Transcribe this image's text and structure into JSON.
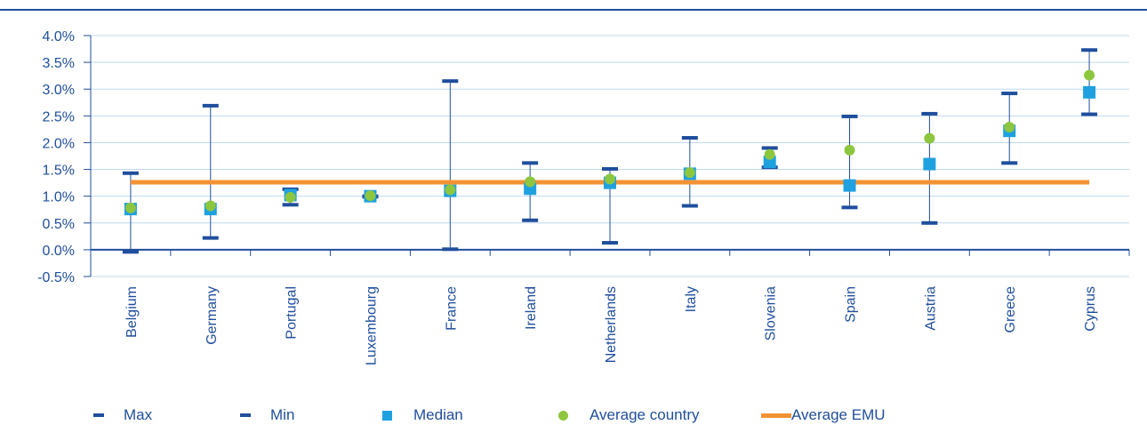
{
  "chart_data": {
    "type": "scatter",
    "title": "",
    "xlabel": "",
    "ylabel": "",
    "ylim": [
      -0.5,
      4.0
    ],
    "y_ticks": [
      "-0.5%",
      "0.0%",
      "0.5%",
      "1.0%",
      "1.5%",
      "2.0%",
      "2.5%",
      "3.0%",
      "3.5%",
      "4.0%"
    ],
    "y_tick_values": [
      -0.5,
      0.0,
      0.5,
      1.0,
      1.5,
      2.0,
      2.5,
      3.0,
      3.5,
      4.0
    ],
    "grid": true,
    "legend_position": "bottom",
    "categories": [
      "Belgium",
      "Germany",
      "Portugal",
      "Luxembourg",
      "France",
      "Ireland",
      "Netherlands",
      "Italy",
      "Slovenia",
      "Spain",
      "Austria",
      "Greece",
      "Cyprus"
    ],
    "series": [
      {
        "name": "Max",
        "marker": "dash",
        "color": "#1f4e9c",
        "values": [
          1.43,
          2.69,
          1.13,
          1.0,
          3.15,
          1.62,
          1.51,
          2.09,
          1.9,
          2.49,
          2.54,
          2.92,
          3.73
        ]
      },
      {
        "name": "Min",
        "marker": "dash",
        "color": "#1f4e9c",
        "values": [
          -0.04,
          0.22,
          0.84,
          0.99,
          0.01,
          0.55,
          0.13,
          0.82,
          1.54,
          0.79,
          0.5,
          1.62,
          2.53
        ]
      },
      {
        "name": "Median",
        "marker": "square",
        "color": "#1fa1e0",
        "values": [
          0.76,
          0.76,
          1.02,
          1.0,
          1.1,
          1.14,
          1.25,
          1.42,
          1.64,
          1.2,
          1.6,
          2.22,
          2.94
        ]
      },
      {
        "name": "Average country",
        "marker": "circle",
        "color": "#8dc63f",
        "values": [
          0.78,
          0.82,
          0.98,
          1.01,
          1.12,
          1.27,
          1.32,
          1.44,
          1.78,
          1.86,
          2.08,
          2.29,
          3.26
        ]
      },
      {
        "name": "Average EMU",
        "marker": "line",
        "color": "#f39233",
        "values": [
          1.26,
          1.26,
          1.26,
          1.26,
          1.26,
          1.26,
          1.26,
          1.26,
          1.26,
          1.26,
          1.26,
          1.26,
          1.26
        ]
      }
    ],
    "colors": {
      "axis": "#1f4e9c",
      "grid": "#bfd9ee",
      "range": "#1f4e9c"
    }
  }
}
